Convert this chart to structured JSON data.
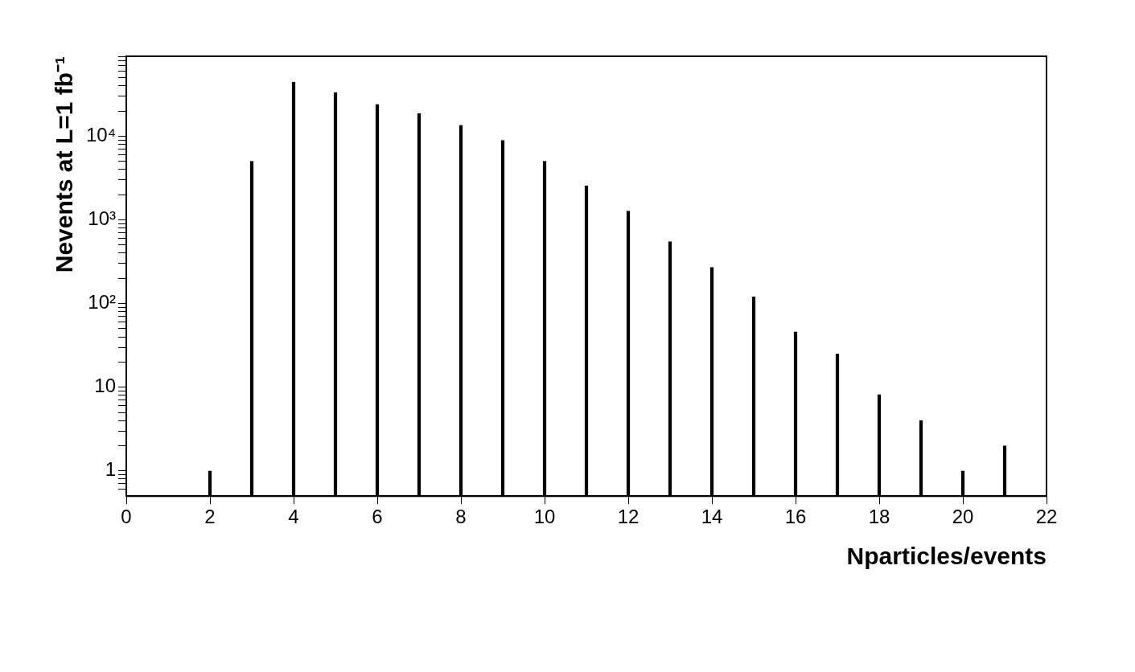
{
  "chart_data": {
    "type": "bar",
    "xlabel": "Nparticles/events",
    "ylabel": "Nevents at L=1 fb⁻¹",
    "log": "y",
    "legend": false,
    "x": [
      2,
      3,
      4,
      5,
      6,
      7,
      8,
      9,
      10,
      11,
      12,
      13,
      14,
      15,
      16,
      17,
      18,
      19,
      20,
      21
    ],
    "values": [
      1,
      5000,
      44000,
      33000,
      24000,
      18600,
      13500,
      8900,
      5000,
      2550,
      1270,
      550,
      270,
      120,
      46,
      25,
      8.2,
      4,
      1,
      2
    ],
    "color": "#000000",
    "xlim": [
      0,
      22
    ],
    "xticks": [
      0,
      2,
      4,
      6,
      8,
      10,
      12,
      14,
      16,
      18,
      20,
      22
    ],
    "ylim": [
      0.5,
      90000
    ],
    "yticks": [
      {
        "value": 0.6,
        "label": null
      },
      {
        "value": 0.7,
        "label": null
      },
      {
        "value": 0.8,
        "label": null
      },
      {
        "value": 0.9,
        "label": null
      },
      {
        "value": 1,
        "label": "1"
      },
      {
        "value": 2,
        "label": null
      },
      {
        "value": 3,
        "label": null
      },
      {
        "value": 4,
        "label": null
      },
      {
        "value": 5,
        "label": null
      },
      {
        "value": 6,
        "label": null
      },
      {
        "value": 7,
        "label": null
      },
      {
        "value": 8,
        "label": null
      },
      {
        "value": 9,
        "label": null
      },
      {
        "value": 10,
        "label": "10"
      },
      {
        "value": 20,
        "label": null
      },
      {
        "value": 30,
        "label": null
      },
      {
        "value": 40,
        "label": null
      },
      {
        "value": 50,
        "label": null
      },
      {
        "value": 60,
        "label": null
      },
      {
        "value": 70,
        "label": null
      },
      {
        "value": 80,
        "label": null
      },
      {
        "value": 90,
        "label": null
      },
      {
        "value": 100,
        "label": "10²"
      },
      {
        "value": 200,
        "label": null
      },
      {
        "value": 300,
        "label": null
      },
      {
        "value": 400,
        "label": null
      },
      {
        "value": 500,
        "label": null
      },
      {
        "value": 600,
        "label": null
      },
      {
        "value": 700,
        "label": null
      },
      {
        "value": 800,
        "label": null
      },
      {
        "value": 900,
        "label": null
      },
      {
        "value": 1000,
        "label": "10³"
      },
      {
        "value": 2000,
        "label": null
      },
      {
        "value": 3000,
        "label": null
      },
      {
        "value": 4000,
        "label": null
      },
      {
        "value": 5000,
        "label": null
      },
      {
        "value": 6000,
        "label": null
      },
      {
        "value": 7000,
        "label": null
      },
      {
        "value": 8000,
        "label": null
      },
      {
        "value": 9000,
        "label": null
      },
      {
        "value": 10000,
        "label": "10⁴"
      },
      {
        "value": 20000,
        "label": null
      },
      {
        "value": 30000,
        "label": null
      },
      {
        "value": 40000,
        "label": null
      },
      {
        "value": 50000,
        "label": null
      },
      {
        "value": 60000,
        "label": null
      },
      {
        "value": 70000,
        "label": null
      },
      {
        "value": 80000,
        "label": null
      },
      {
        "value": 90000,
        "label": null
      }
    ]
  }
}
